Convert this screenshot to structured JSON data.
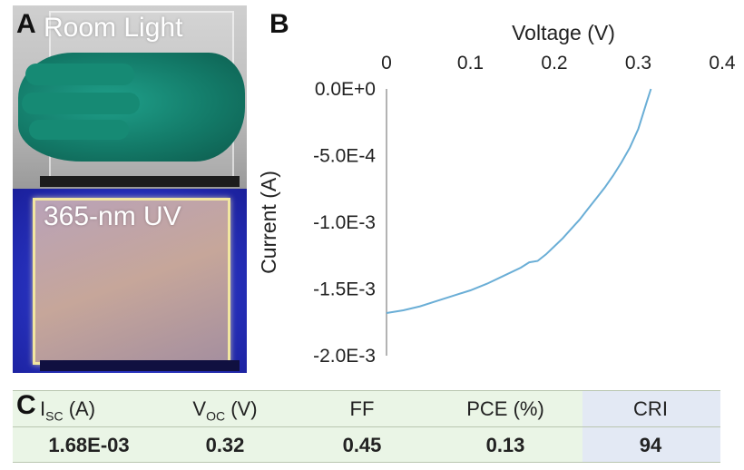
{
  "panel_a": {
    "letter": "A",
    "top_label": "Room Light",
    "bottom_label": "365-nm UV"
  },
  "panel_b": {
    "letter": "B"
  },
  "chart_data": {
    "type": "line",
    "title": "",
    "xlabel": "Voltage (V)",
    "ylabel": "Current (A)",
    "xlim": [
      0,
      0.4
    ],
    "ylim": [
      -0.002,
      0
    ],
    "x_ticks": [
      "0",
      "0.1",
      "0.2",
      "0.3",
      "0.4"
    ],
    "y_ticks": [
      "0.0E+0",
      "-5.0E-4",
      "-1.0E-3",
      "-1.5E-3",
      "-2.0E-3"
    ],
    "line_color": "#6aaed6",
    "series": [
      {
        "name": "I-V curve",
        "x": [
          0,
          0.02,
          0.04,
          0.06,
          0.08,
          0.1,
          0.12,
          0.14,
          0.16,
          0.17,
          0.18,
          0.19,
          0.2,
          0.21,
          0.22,
          0.23,
          0.24,
          0.25,
          0.26,
          0.27,
          0.28,
          0.29,
          0.3,
          0.305,
          0.31,
          0.315
        ],
        "y": [
          -0.00168,
          -0.00166,
          -0.00163,
          -0.00159,
          -0.00155,
          -0.00151,
          -0.00146,
          -0.0014,
          -0.00134,
          -0.0013,
          -0.00129,
          -0.00124,
          -0.00118,
          -0.00112,
          -0.00105,
          -0.00098,
          -0.0009,
          -0.00082,
          -0.00074,
          -0.00065,
          -0.00055,
          -0.00044,
          -0.0003,
          -0.0002,
          -0.0001,
          0
        ]
      }
    ]
  },
  "panel_c": {
    "letter": "C",
    "headers": [
      {
        "main": "I",
        "sub": "SC",
        "unit": " (A)"
      },
      {
        "main": "V",
        "sub": "OC",
        "unit": " (V)"
      },
      {
        "main": "FF",
        "sub": "",
        "unit": ""
      },
      {
        "main": "PCE (%)",
        "sub": "",
        "unit": ""
      },
      {
        "main": "CRI",
        "sub": "",
        "unit": ""
      }
    ],
    "values": [
      "1.68E-03",
      "0.32",
      "0.45",
      "0.13",
      "94"
    ]
  }
}
